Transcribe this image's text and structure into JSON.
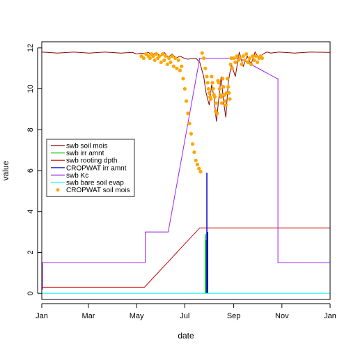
{
  "chart_data": {
    "type": "line",
    "title": "",
    "xlabel": "date",
    "ylabel": "value",
    "x_unit": "day of year (0 = Jan 1)",
    "xlim": [
      0,
      365
    ],
    "ylim": [
      -0.3,
      12.3
    ],
    "y_ticks": [
      0,
      2,
      4,
      6,
      8,
      10,
      12
    ],
    "x_ticks": [
      {
        "label": "Jan",
        "x": 0
      },
      {
        "label": "Mar",
        "x": 59
      },
      {
        "label": "May",
        "x": 120
      },
      {
        "label": "Jul",
        "x": 181
      },
      {
        "label": "Sep",
        "x": 243
      },
      {
        "label": "Nov",
        "x": 304
      },
      {
        "label": "Jan",
        "x": 365
      }
    ],
    "legend_position": "left-middle",
    "series": [
      {
        "name": "swb soil mois",
        "color": "#8b0000",
        "kind": "line",
        "x": [
          0,
          20,
          40,
          60,
          80,
          100,
          115,
          120,
          125,
          130,
          135,
          140,
          145,
          150,
          155,
          160,
          165,
          170,
          175,
          180,
          185,
          195,
          200,
          205,
          208,
          212,
          215,
          218,
          221,
          224,
          227,
          230,
          233,
          236,
          240,
          245,
          250,
          255,
          260,
          265,
          270,
          275,
          280,
          285,
          290,
          300,
          320,
          340,
          365
        ],
        "y": [
          11.8,
          11.75,
          11.8,
          11.75,
          11.8,
          11.75,
          11.78,
          11.7,
          11.75,
          11.72,
          11.78,
          11.65,
          11.78,
          11.6,
          11.78,
          11.55,
          11.7,
          11.5,
          11.6,
          11.5,
          11.45,
          11.5,
          11.3,
          10.6,
          9.8,
          9.2,
          10.2,
          9.6,
          8.4,
          9.5,
          10.6,
          9.4,
          8.6,
          10.3,
          11.2,
          10.6,
          11.8,
          11.1,
          11.6,
          11.2,
          11.8,
          11.5,
          11.7,
          11.8,
          11.75,
          11.8,
          11.75,
          11.8,
          11.78
        ]
      },
      {
        "name": "swb irr amnt",
        "color": "#00cd00",
        "kind": "spikes",
        "x": [
          207,
          208
        ],
        "y": [
          2.9,
          2.6
        ]
      },
      {
        "name": "swb rooting dpth",
        "color": "#cd0000",
        "kind": "line",
        "x": [
          0,
          130,
          200,
          365
        ],
        "y": [
          0.3,
          0.3,
          3.2,
          3.2
        ]
      },
      {
        "name": "CROPWAT irr amnt",
        "color": "#0000cd",
        "kind": "spikes",
        "x": [
          209,
          210
        ],
        "y": [
          5.9,
          3.0
        ]
      },
      {
        "name": "swb Kc",
        "color": "#a020f0",
        "kind": "line",
        "x": [
          0,
          1,
          1,
          131,
          131,
          160,
          200,
          222,
          250,
          298,
          299,
          299,
          365
        ],
        "y": [
          0.2,
          0.2,
          1.5,
          1.5,
          3.0,
          3.0,
          11.5,
          11.5,
          11.5,
          10.5,
          10.5,
          1.5,
          1.5
        ]
      },
      {
        "name": "swb bare soil evap",
        "color": "#00ffff",
        "kind": "line",
        "x": [
          0,
          365
        ],
        "y": [
          0,
          0
        ]
      },
      {
        "name": "CROPWAT soil mois",
        "color": "#ffa500",
        "kind": "points",
        "x": [
          126,
          129,
          132,
          135,
          137,
          139,
          141,
          143,
          145,
          147,
          149,
          151,
          153,
          155,
          157,
          159,
          161,
          163,
          165,
          167,
          169,
          171,
          173,
          175,
          177,
          179,
          181,
          183,
          185,
          187,
          189,
          191,
          193,
          195,
          197,
          199,
          201,
          203,
          205,
          207,
          209,
          210,
          211,
          212,
          213,
          214,
          215,
          216,
          217,
          218,
          219,
          220,
          221,
          222,
          223,
          224,
          225,
          226,
          227,
          228,
          229,
          230,
          231,
          232,
          233,
          234,
          235,
          236,
          237,
          238,
          239,
          240,
          241,
          243,
          245,
          247,
          249,
          251,
          253,
          255,
          257,
          259,
          261,
          263,
          265,
          267,
          269,
          271,
          273,
          275,
          277,
          279
        ],
        "y": [
          11.6,
          11.5,
          11.7,
          11.6,
          11.5,
          11.7,
          11.6,
          11.4,
          11.7,
          11.5,
          11.6,
          11.3,
          11.7,
          11.4,
          11.6,
          11.2,
          11.5,
          11.3,
          11.6,
          11.1,
          11.5,
          11.0,
          11.4,
          10.9,
          11.1,
          10.5,
          10.0,
          9.4,
          8.8,
          8.3,
          7.8,
          7.3,
          6.9,
          6.5,
          6.3,
          6.1,
          5.95,
          11.75,
          11.5,
          11.0,
          10.6,
          10.3,
          10.0,
          9.8,
          9.6,
          9.5,
          10.6,
          10.3,
          10.0,
          9.7,
          9.6,
          8.9,
          9.3,
          8.8,
          10.4,
          10.3,
          10.0,
          9.7,
          9.6,
          9.3,
          10.5,
          10.1,
          9.7,
          9.4,
          9.2,
          9.8,
          10.5,
          10.1,
          9.8,
          9.5,
          11.2,
          11.5,
          11.0,
          11.5,
          11.3,
          11.6,
          11.4,
          11.5,
          11.2,
          11.6,
          11.4,
          11.7,
          11.3,
          11.5,
          11.2,
          11.6,
          11.4,
          11.6,
          11.3,
          11.5,
          11.6,
          11.5
        ]
      }
    ]
  }
}
